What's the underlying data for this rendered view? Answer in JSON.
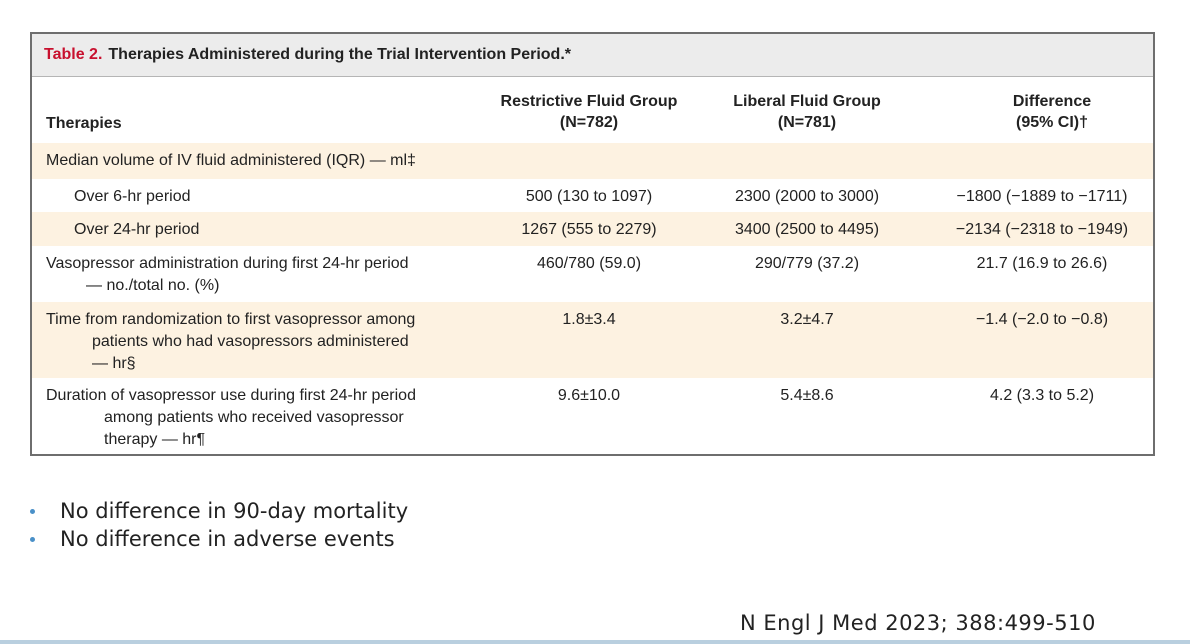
{
  "table": {
    "number": "Table 2.",
    "title": "Therapies Administered during the Trial Intervention Period.*",
    "headers": {
      "therapies": "Therapies",
      "restrictive_line1": "Restrictive Fluid Group",
      "restrictive_line2": "(N=782)",
      "liberal_line1": "Liberal Fluid Group",
      "liberal_line2": "(N=781)",
      "difference_line1": "Difference",
      "difference_line2": "(95% CI)†"
    },
    "rows": [
      {
        "label": "Median volume of IV fluid administered (IQR) — ml‡",
        "restrictive": "",
        "liberal": "",
        "difference": ""
      },
      {
        "label": "Over 6-hr period",
        "restrictive": "500 (130 to 1097)",
        "liberal": "2300 (2000 to 3000)",
        "difference": "−1800 (−1889 to −1711)"
      },
      {
        "label": "Over 24-hr period",
        "restrictive": "1267 (555 to 2279)",
        "liberal": "3400 (2500 to 4495)",
        "difference": "−2134 (−2318 to −1949)"
      },
      {
        "label_line1": "Vasopressor administration during first 24-hr period",
        "label_line2": "— no./total no. (%)",
        "restrictive": "460/780 (59.0)",
        "liberal": "290/779 (37.2)",
        "difference": "21.7 (16.9 to 26.6)"
      },
      {
        "label_line1": "Time from randomization to first vasopressor among",
        "label_line2": "patients who had vasopressors administered",
        "label_line3": "— hr§",
        "restrictive": "1.8±3.4",
        "liberal": "3.2±4.7",
        "difference": "−1.4 (−2.0 to −0.8)"
      },
      {
        "label_line1": "Duration of vasopressor use during first 24-hr period",
        "label_line2": "among patients who received vasopressor",
        "label_line3": "therapy — hr¶",
        "restrictive": "9.6±10.0",
        "liberal": "5.4±8.6",
        "difference": "4.2 (3.3 to 5.2)"
      }
    ]
  },
  "bullets": [
    "No difference in 90-day mortality",
    "No difference in adverse events"
  ],
  "citation": "N Engl J Med 2023; 388:499-510",
  "colors": {
    "table_number": "#c8102e",
    "shaded_row": "#fdf2e1",
    "caption_bg": "#ececec",
    "bullet": "#4a90c8"
  }
}
